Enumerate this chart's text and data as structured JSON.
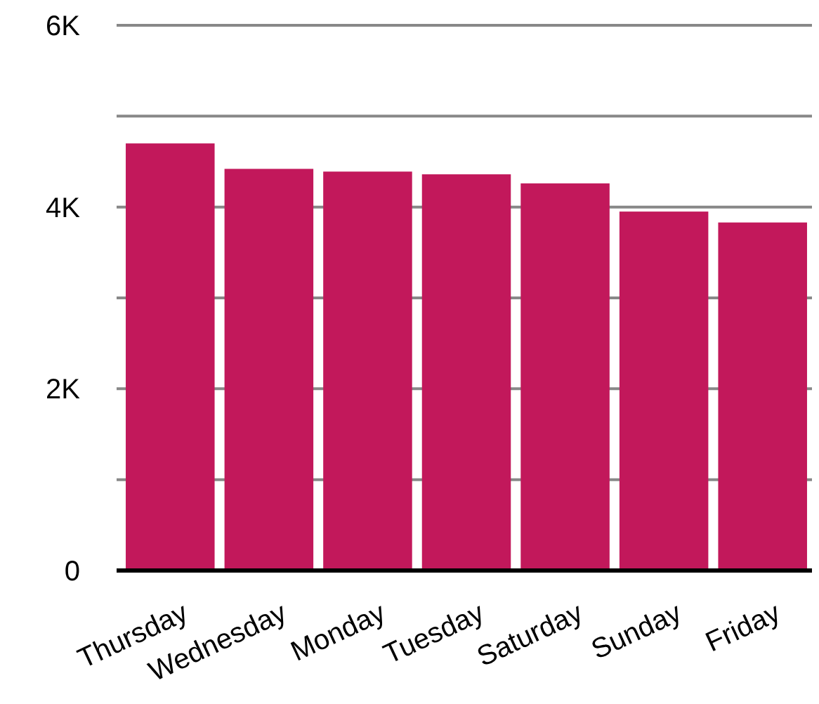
{
  "chart_data": {
    "type": "bar",
    "categories": [
      "Thursday",
      "Wednesday",
      "Monday",
      "Tuesday",
      "Saturday",
      "Sunday",
      "Friday"
    ],
    "values": [
      4700,
      4420,
      4390,
      4360,
      4260,
      3950,
      3830
    ],
    "color": "#c2185b",
    "ylim": [
      0,
      6000
    ],
    "yticks": [
      0,
      {
        "value": 1000,
        "label": null
      },
      {
        "value": 2000,
        "label": "2K"
      },
      {
        "value": 3000,
        "label": null
      },
      {
        "value": 4000,
        "label": "4K"
      },
      {
        "value": 5000,
        "label": null
      },
      {
        "value": 6000,
        "label": "6K"
      }
    ],
    "grid": "y"
  }
}
